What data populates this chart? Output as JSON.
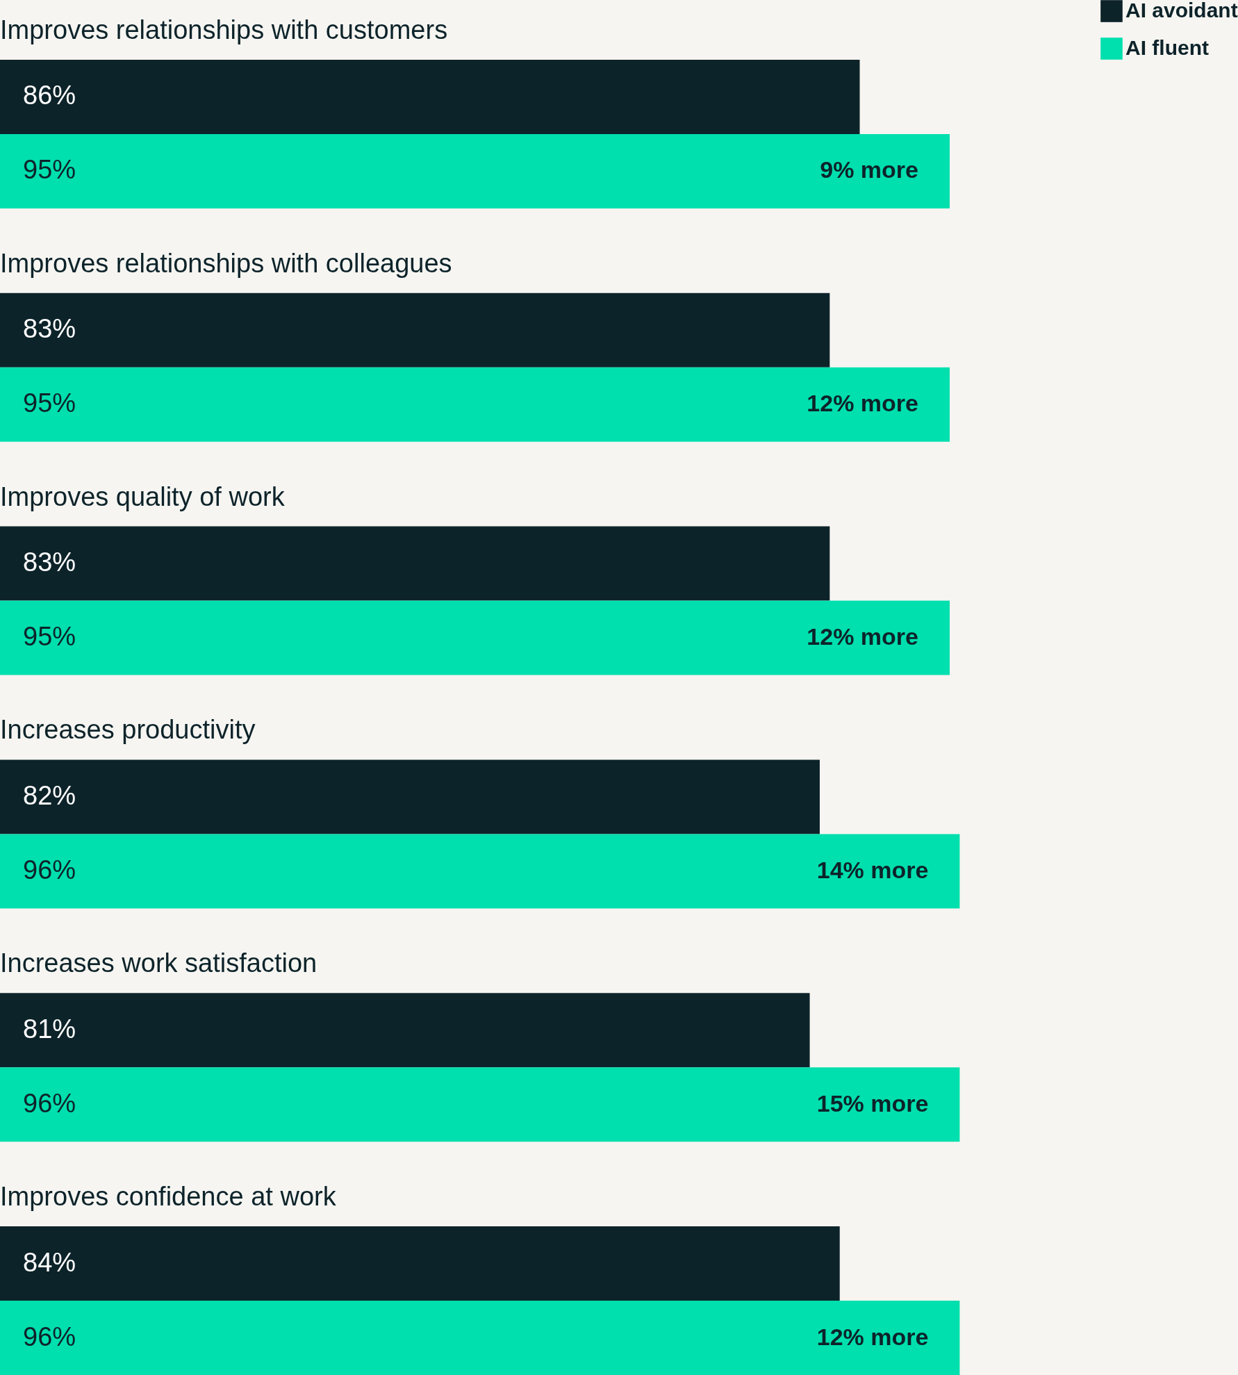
{
  "chart_data": {
    "type": "bar",
    "orientation": "horizontal",
    "legend": "top right",
    "categories": [
      "Improves relationships with customers",
      "Improves relationships with colleagues",
      "Improves quality of work",
      "Increases productivity",
      "Increases work satisfaction",
      "Improves confidence at work"
    ],
    "series": [
      {
        "name": "AI avoidant",
        "color": "#0d232a",
        "values": [
          86,
          83,
          83,
          82,
          81,
          84
        ],
        "value_labels": [
          "86%",
          "83%",
          "83%",
          "82%",
          "81%",
          "84%"
        ]
      },
      {
        "name": "AI fluent",
        "color": "#00dfae",
        "values": [
          95,
          95,
          95,
          96,
          96,
          96
        ],
        "value_labels": [
          "95%",
          "95%",
          "95%",
          "96%",
          "96%",
          "96%"
        ]
      }
    ],
    "annotations": [
      "9% more",
      "12% more",
      "12% more",
      "14% more",
      "15% more",
      "12% more"
    ]
  }
}
